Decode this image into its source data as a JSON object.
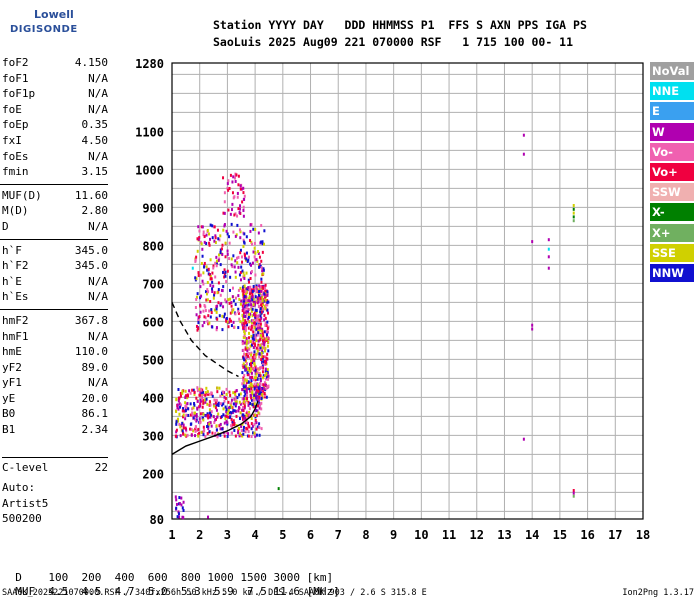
{
  "logo": {
    "line1": "Lowell",
    "line2": "DIGISONDE"
  },
  "header": {
    "line1": "Station YYYY DAY   DDD HHMMSS P1  FFS S AXN PPS IGA PS",
    "line2": "SaoLuis 2025 Aug09 221 070000 RSF   1 715 100 00- 11"
  },
  "params": [
    {
      "k": "foF2",
      "v": "4.150"
    },
    {
      "k": "foF1",
      "v": "N/A"
    },
    {
      "k": "foF1p",
      "v": "N/A"
    },
    {
      "k": "foE",
      "v": "N/A"
    },
    {
      "k": "foEp",
      "v": "0.35"
    },
    {
      "k": "fxI",
      "v": "4.50"
    },
    {
      "k": "foEs",
      "v": "N/A"
    },
    {
      "k": "fmin",
      "v": "3.15"
    },
    {
      "sep": true
    },
    {
      "k": "MUF(D)",
      "v": "11.60"
    },
    {
      "k": "M(D)",
      "v": "2.80"
    },
    {
      "k": "D",
      "v": "N/A"
    },
    {
      "sep": true
    },
    {
      "k": "h`F",
      "v": "345.0"
    },
    {
      "k": "h`F2",
      "v": "345.0"
    },
    {
      "k": "h`E",
      "v": "N/A"
    },
    {
      "k": "h`Es",
      "v": "N/A"
    },
    {
      "sep": true
    },
    {
      "k": "hmF2",
      "v": "367.8"
    },
    {
      "k": "hmF1",
      "v": "N/A"
    },
    {
      "k": "hmE",
      "v": "110.0"
    },
    {
      "k": "yF2",
      "v": "89.0"
    },
    {
      "k": "yF1",
      "v": "N/A"
    },
    {
      "k": "yE",
      "v": "20.0"
    },
    {
      "k": "B0",
      "v": "86.1"
    },
    {
      "k": "B1",
      "v": "2.34"
    }
  ],
  "clevel": {
    "k": "C-level",
    "v": "22"
  },
  "auto": {
    "line1": "Auto:",
    "line2": "Artist5",
    "line3": "500200"
  },
  "legend": [
    {
      "label": "NoVal",
      "color": "#a0a0a0"
    },
    {
      "label": "NNE",
      "color": "#00e0f0"
    },
    {
      "label": "E",
      "color": "#3aa0f0"
    },
    {
      "label": "W",
      "color": "#b000b0"
    },
    {
      "label": "Vo-",
      "color": "#f060b0"
    },
    {
      "label": "Vo+",
      "color": "#f00040"
    },
    {
      "label": "SSW",
      "color": "#f0b0b0"
    },
    {
      "label": "X-",
      "color": "#008000"
    },
    {
      "label": "X+",
      "color": "#70b060"
    },
    {
      "label": "SSE",
      "color": "#d0d000"
    },
    {
      "label": "NNW",
      "color": "#1010d0"
    }
  ],
  "chart_data": {
    "type": "scatter",
    "title": "",
    "xlabel": "",
    "ylabel": "",
    "xlim": [
      1,
      18
    ],
    "ylim": [
      80,
      1280
    ],
    "x_ticks": [
      1,
      2,
      3,
      4,
      5,
      6,
      7,
      8,
      9,
      10,
      11,
      12,
      13,
      14,
      15,
      16,
      17,
      18
    ],
    "y_ticks": [
      80,
      200,
      300,
      400,
      500,
      600,
      700,
      800,
      900,
      1000,
      1100,
      1280
    ],
    "grid": true,
    "profile_solid": [
      [
        1.0,
        250
      ],
      [
        1.5,
        272
      ],
      [
        2.0,
        285
      ],
      [
        2.5,
        298
      ],
      [
        3.0,
        312
      ],
      [
        3.5,
        330
      ],
      [
        3.85,
        350
      ],
      [
        4.0,
        370
      ],
      [
        4.1,
        390
      ]
    ],
    "profile_dashed": [
      [
        1.0,
        650
      ],
      [
        1.3,
        600
      ],
      [
        1.7,
        550
      ],
      [
        2.2,
        510
      ],
      [
        2.6,
        490
      ],
      [
        3.0,
        470
      ],
      [
        3.4,
        455
      ]
    ],
    "echo_clusters": [
      {
        "x": [
          1.1,
          4.2
        ],
        "y": [
          300,
          430
        ],
        "n": 500,
        "colors": [
          "#f00040",
          "#d0d000",
          "#1010d0",
          "#f060b0",
          "#b000b0"
        ]
      },
      {
        "x": [
          3.5,
          4.45
        ],
        "y": [
          400,
          700
        ],
        "n": 600,
        "colors": [
          "#f00040",
          "#b000b0",
          "#f060b0",
          "#1010d0",
          "#d0d000"
        ]
      },
      {
        "x": [
          1.8,
          4.3
        ],
        "y": [
          580,
          860
        ],
        "n": 400,
        "colors": [
          "#b000b0",
          "#f060b0",
          "#f00040",
          "#d0d000",
          "#1010d0"
        ]
      },
      {
        "x": [
          2.8,
          3.6
        ],
        "y": [
          880,
          1000
        ],
        "n": 50,
        "colors": [
          "#f00040",
          "#f060b0",
          "#b000b0"
        ]
      },
      {
        "x": [
          1.1,
          1.4
        ],
        "y": [
          85,
          145
        ],
        "n": 20,
        "colors": [
          "#1010d0",
          "#b000b0"
        ]
      }
    ],
    "isolated_points": [
      {
        "x": 13.7,
        "y": 1090,
        "color": "#b000b0"
      },
      {
        "x": 13.7,
        "y": 1040,
        "color": "#b000b0"
      },
      {
        "x": 14.0,
        "y": 810,
        "color": "#b000b0"
      },
      {
        "x": 14.6,
        "y": 815,
        "color": "#b000b0"
      },
      {
        "x": 14.6,
        "y": 790,
        "color": "#00e0f0"
      },
      {
        "x": 14.6,
        "y": 770,
        "color": "#b000b0"
      },
      {
        "x": 14.6,
        "y": 740,
        "color": "#b000b0"
      },
      {
        "x": 14.0,
        "y": 590,
        "color": "#b000b0"
      },
      {
        "x": 14.0,
        "y": 580,
        "color": "#b000b0"
      },
      {
        "x": 13.7,
        "y": 290,
        "color": "#b000b0"
      },
      {
        "x": 15.5,
        "y": 905,
        "color": "#d0d000"
      },
      {
        "x": 15.5,
        "y": 895,
        "color": "#008000"
      },
      {
        "x": 15.5,
        "y": 885,
        "color": "#d0d000"
      },
      {
        "x": 15.5,
        "y": 875,
        "color": "#008000"
      },
      {
        "x": 15.5,
        "y": 865,
        "color": "#70b060"
      },
      {
        "x": 15.5,
        "y": 155,
        "color": "#f00040"
      },
      {
        "x": 15.5,
        "y": 148,
        "color": "#b000b0"
      },
      {
        "x": 15.5,
        "y": 140,
        "color": "#70b060"
      },
      {
        "x": 4.85,
        "y": 160,
        "color": "#008000"
      },
      {
        "x": 1.75,
        "y": 740,
        "color": "#00e0f0"
      },
      {
        "x": 2.3,
        "y": 85,
        "color": "#b000b0"
      }
    ]
  },
  "muf_table": {
    "d_label": "D",
    "d_values": "100  200  400  600  800 1000 1500 3000 [km]",
    "m_label": "MUF",
    "m_values": "4.5  4.5  4.7  5.0  5.3  5.9  7.5 11.6 [MHz]"
  },
  "footer": {
    "source": "SAA0K_2025221070000.RSF / 340fx256h 50 kHz 5.0 km / DPS-4 SAA0K 903 / 2.6 S 315.8 E",
    "version": "Ion2Png 1.3.17"
  }
}
